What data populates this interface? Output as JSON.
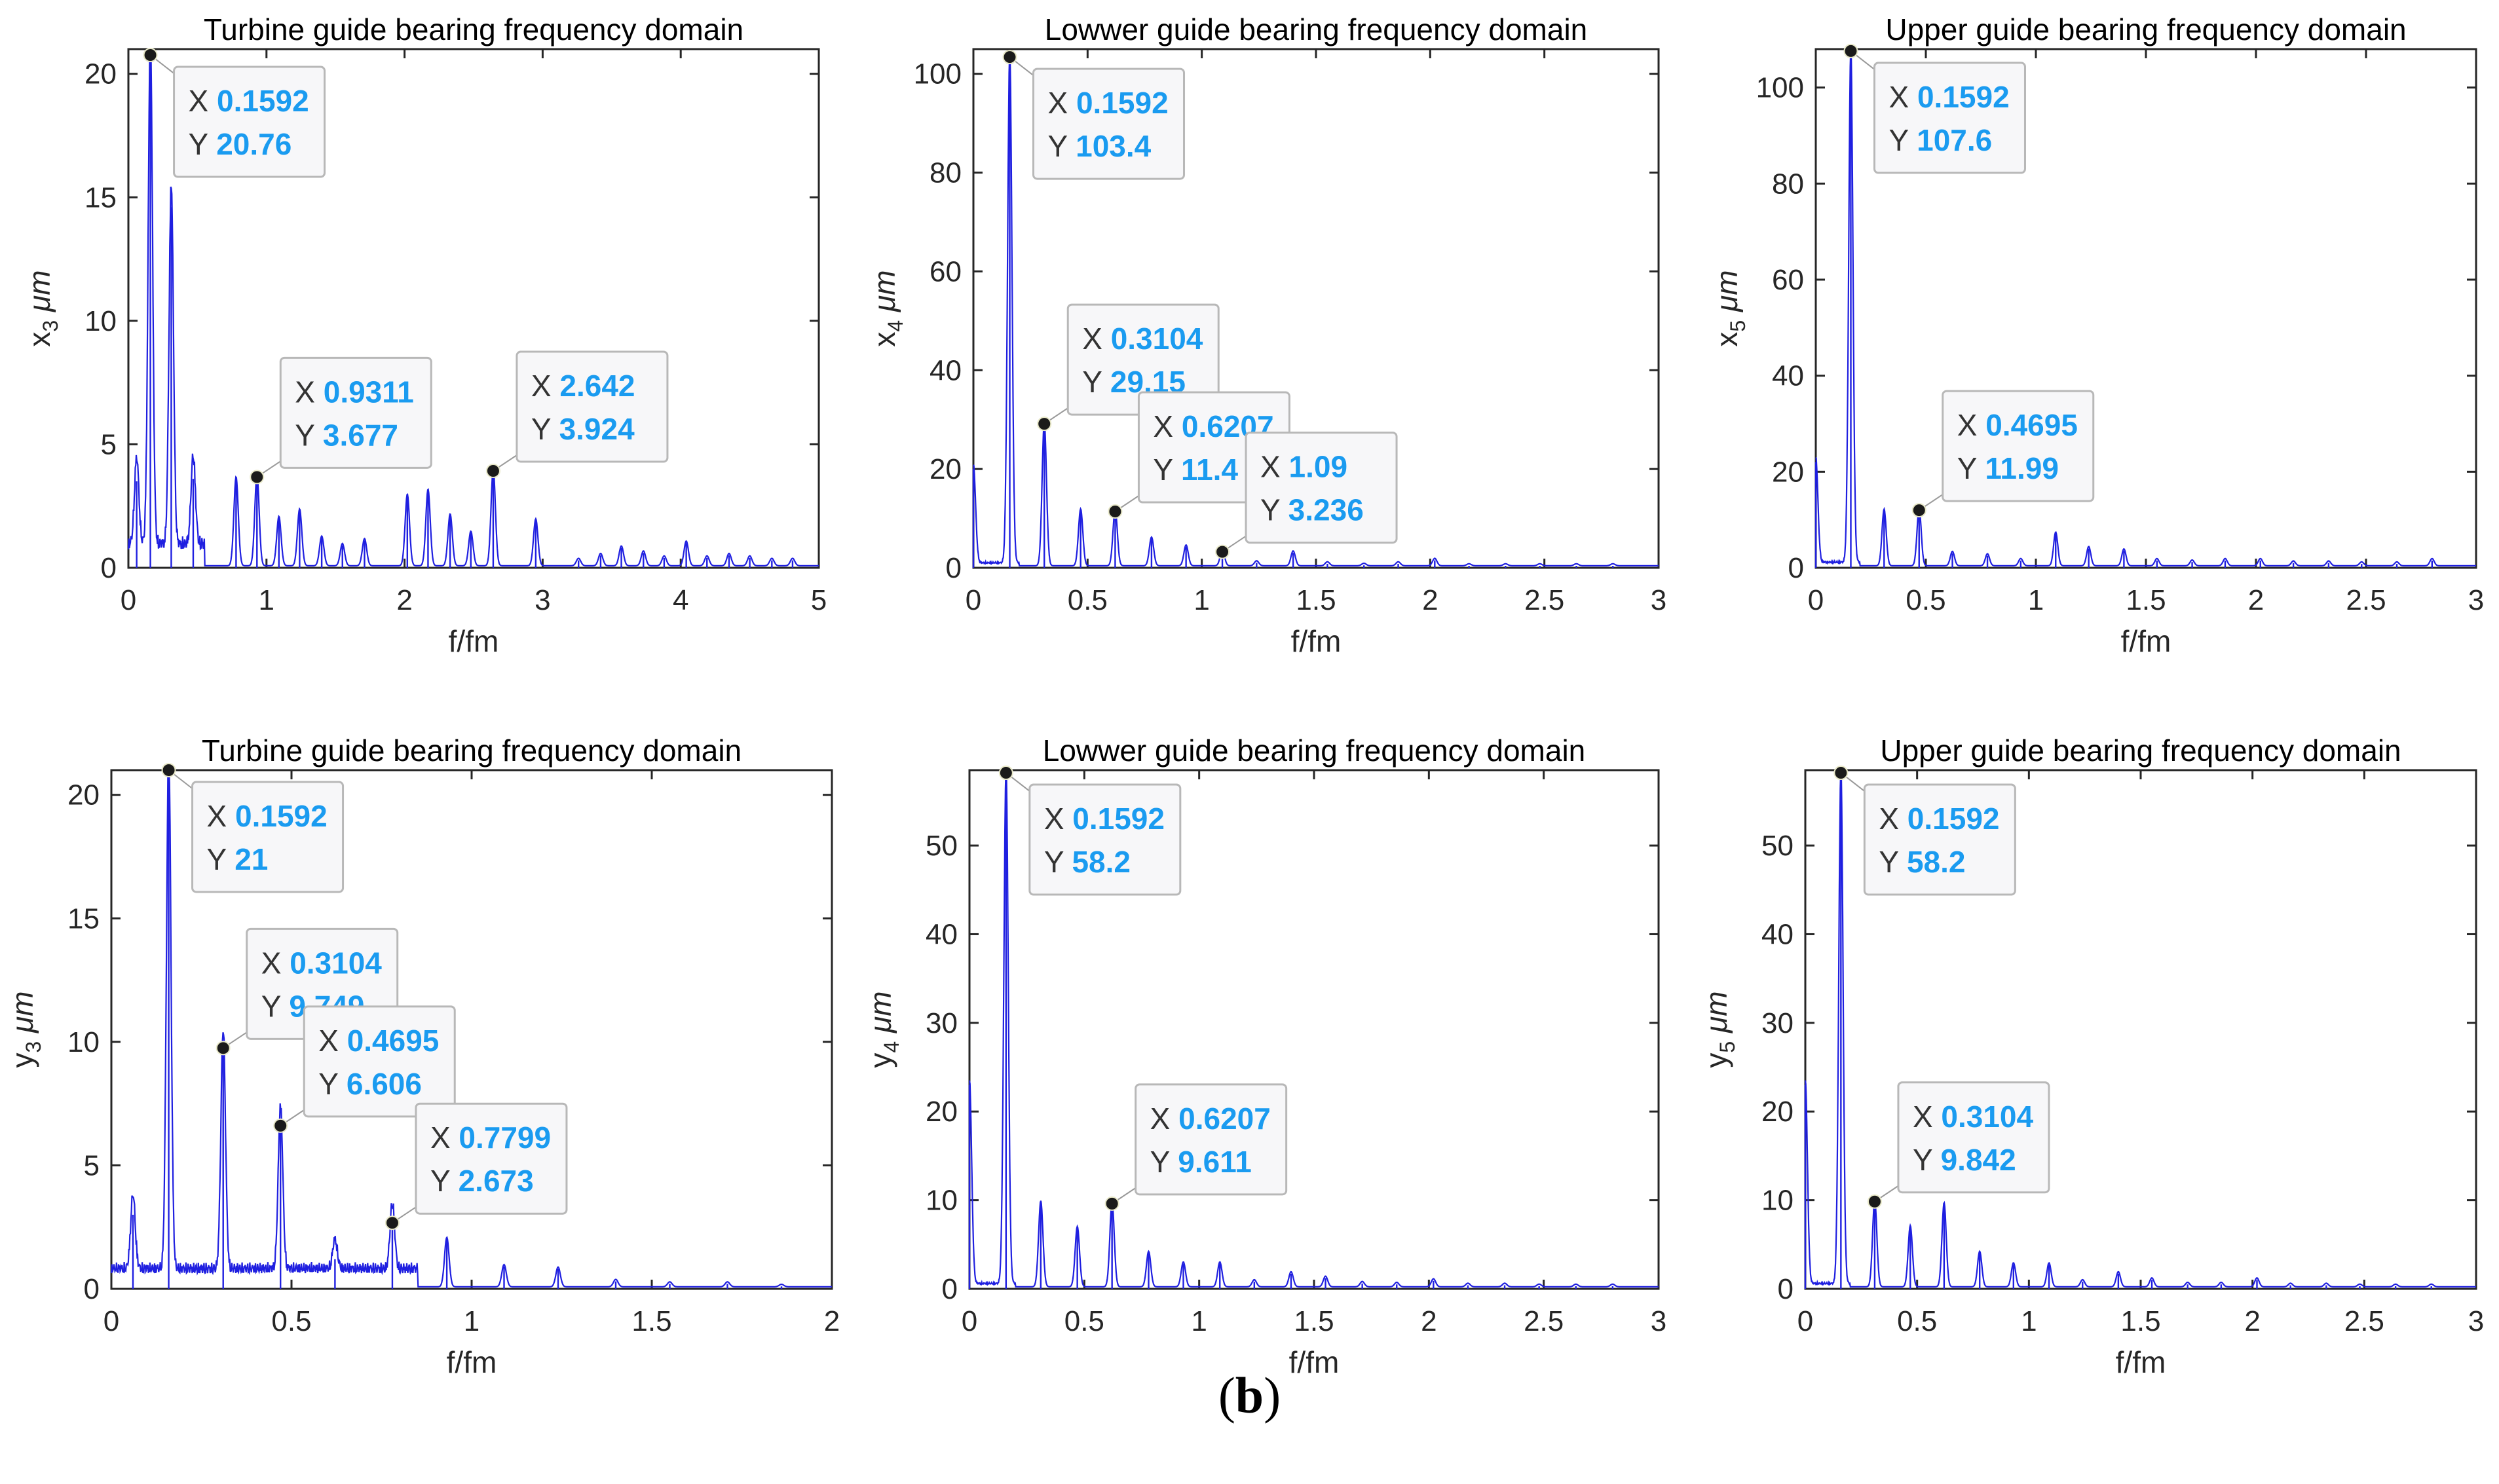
{
  "caption": {
    "open": "(",
    "letter": "b",
    "close": ")"
  },
  "chart_data": [
    {
      "type": "line",
      "title": "Turbine guide bearing frequency domain",
      "xlabel": "f/fm",
      "ylabel": {
        "base": "x",
        "sub": "3",
        "unit": "μm"
      },
      "xlim": [
        0,
        5
      ],
      "ylim": [
        0,
        21
      ],
      "xticks": [
        0,
        1,
        2,
        3,
        4,
        5
      ],
      "yticks": [
        0,
        5,
        10,
        15,
        20
      ],
      "series_color": "#1f1fe0",
      "peaks": [
        [
          0.06,
          3.5
        ],
        [
          0.1592,
          20.76
        ],
        [
          0.3104,
          14.6
        ],
        [
          0.4695,
          3.6
        ],
        [
          0.7799,
          3.6
        ],
        [
          0.9311,
          3.677
        ],
        [
          1.09,
          2.0
        ],
        [
          1.24,
          2.3
        ],
        [
          1.4,
          1.2
        ],
        [
          1.55,
          0.9
        ],
        [
          1.71,
          1.1
        ],
        [
          2.02,
          2.9
        ],
        [
          2.17,
          3.1
        ],
        [
          2.33,
          2.1
        ],
        [
          2.48,
          1.4
        ],
        [
          2.642,
          3.924
        ],
        [
          2.95,
          1.9
        ],
        [
          3.26,
          0.3
        ],
        [
          3.42,
          0.5
        ],
        [
          3.57,
          0.8
        ],
        [
          3.73,
          0.6
        ],
        [
          3.88,
          0.4
        ],
        [
          4.04,
          1.0
        ],
        [
          4.19,
          0.4
        ],
        [
          4.35,
          0.5
        ],
        [
          4.5,
          0.4
        ],
        [
          4.66,
          0.3
        ],
        [
          4.81,
          0.3
        ]
      ],
      "noise": {
        "start": 0.0,
        "end": 0.55,
        "base": 1.2
      },
      "annotations": [
        {
          "x": 0.1592,
          "y": 20.76,
          "X": "0.1592",
          "Y": "20.76",
          "pos": "right"
        },
        {
          "x": 0.9311,
          "y": 3.677,
          "X": "0.9311",
          "Y": "3.677",
          "pos": "upright"
        },
        {
          "x": 2.642,
          "y": 3.924,
          "X": "2.642",
          "Y": "3.924",
          "pos": "upright"
        }
      ]
    },
    {
      "type": "line",
      "title": "Lowwer guide bearing frequency domain",
      "xlabel": "f/fm",
      "ylabel": {
        "base": "x",
        "sub": "4",
        "unit": "μm"
      },
      "xlim": [
        0,
        3
      ],
      "ylim": [
        0,
        105
      ],
      "xticks": [
        0,
        0.5,
        1,
        1.5,
        2,
        2.5,
        3
      ],
      "yticks": [
        0,
        20,
        40,
        60,
        80,
        100
      ],
      "series_color": "#1f1fe0",
      "peaks": [
        [
          0.0,
          20
        ],
        [
          0.1592,
          103.4
        ],
        [
          0.3104,
          29.15
        ],
        [
          0.4695,
          11.5
        ],
        [
          0.6207,
          11.4
        ],
        [
          0.7799,
          5.8
        ],
        [
          0.9311,
          4.2
        ],
        [
          1.09,
          3.236
        ],
        [
          1.24,
          1.0
        ],
        [
          1.4,
          3.0
        ],
        [
          1.55,
          0.8
        ],
        [
          1.71,
          0.5
        ],
        [
          1.86,
          0.8
        ],
        [
          2.02,
          1.5
        ],
        [
          2.17,
          0.4
        ],
        [
          2.33,
          0.4
        ],
        [
          2.48,
          0.4
        ],
        [
          2.64,
          0.4
        ],
        [
          2.8,
          0.4
        ]
      ],
      "noise": {
        "start": 0.0,
        "end": 0.2,
        "base": 0.8
      },
      "annotations": [
        {
          "x": 0.1592,
          "y": 103.4,
          "X": "0.1592",
          "Y": "103.4",
          "pos": "right"
        },
        {
          "x": 0.3104,
          "y": 29.15,
          "X": "0.3104",
          "Y": "29.15",
          "pos": "upright"
        },
        {
          "x": 0.6207,
          "y": 11.4,
          "X": "0.6207",
          "Y": "11.4",
          "pos": "upright"
        },
        {
          "x": 1.09,
          "y": 3.236,
          "X": "1.09",
          "Y": "3.236",
          "pos": "upright"
        }
      ]
    },
    {
      "type": "line",
      "title": "Upper guide bearing frequency domain",
      "xlabel": "f/fm",
      "ylabel": {
        "base": "x",
        "sub": "5",
        "unit": "μm"
      },
      "xlim": [
        0,
        3
      ],
      "ylim": [
        0,
        108
      ],
      "xticks": [
        0,
        0.5,
        1,
        1.5,
        2,
        2.5,
        3
      ],
      "yticks": [
        0,
        20,
        40,
        60,
        80,
        100
      ],
      "series_color": "#1f1fe0",
      "peaks": [
        [
          0.0,
          22
        ],
        [
          0.1592,
          107.6
        ],
        [
          0.3104,
          11.8
        ],
        [
          0.4695,
          11.99
        ],
        [
          0.6207,
          3.0
        ],
        [
          0.7799,
          2.5
        ],
        [
          0.9311,
          1.5
        ],
        [
          1.09,
          7.0
        ],
        [
          1.24,
          4.0
        ],
        [
          1.4,
          3.5
        ],
        [
          1.55,
          1.5
        ],
        [
          1.71,
          1.2
        ],
        [
          1.86,
          1.5
        ],
        [
          2.02,
          1.5
        ],
        [
          2.17,
          1.0
        ],
        [
          2.33,
          1.0
        ],
        [
          2.48,
          0.8
        ],
        [
          2.64,
          0.8
        ],
        [
          2.8,
          1.5
        ]
      ],
      "noise": {
        "start": 0.0,
        "end": 0.2,
        "base": 1.0
      },
      "annotations": [
        {
          "x": 0.1592,
          "y": 107.6,
          "X": "0.1592",
          "Y": "107.6",
          "pos": "right"
        },
        {
          "x": 0.4695,
          "y": 11.99,
          "X": "0.4695",
          "Y": "11.99",
          "pos": "upright"
        }
      ]
    },
    {
      "type": "line",
      "title": "Turbine guide bearing frequency domain",
      "xlabel": "f/fm",
      "ylabel": {
        "base": "y",
        "sub": "3",
        "unit": "μm"
      },
      "xlim": [
        0,
        2
      ],
      "ylim": [
        0,
        21
      ],
      "xticks": [
        0,
        0.5,
        1,
        1.5,
        2
      ],
      "yticks": [
        0,
        5,
        10,
        15,
        20
      ],
      "series_color": "#1f1fe0",
      "peaks": [
        [
          0.06,
          3.0
        ],
        [
          0.1592,
          21
        ],
        [
          0.3104,
          9.749
        ],
        [
          0.4695,
          6.606
        ],
        [
          0.6207,
          1.2
        ],
        [
          0.7799,
          2.673
        ],
        [
          0.9311,
          2.0
        ],
        [
          1.09,
          0.9
        ],
        [
          1.24,
          0.8
        ],
        [
          1.4,
          0.3
        ],
        [
          1.55,
          0.2
        ],
        [
          1.71,
          0.2
        ],
        [
          1.86,
          0.1
        ]
      ],
      "noise": {
        "start": 0.0,
        "end": 0.85,
        "base": 1.0
      },
      "annotations": [
        {
          "x": 0.1592,
          "y": 21,
          "X": "0.1592",
          "Y": "21",
          "pos": "right"
        },
        {
          "x": 0.3104,
          "y": 9.749,
          "X": "0.3104",
          "Y": "9.749",
          "pos": "upright"
        },
        {
          "x": 0.4695,
          "y": 6.606,
          "X": "0.4695",
          "Y": "6.606",
          "pos": "upright"
        },
        {
          "x": 0.7799,
          "y": 2.673,
          "X": "0.7799",
          "Y": "2.673",
          "pos": "upright"
        }
      ]
    },
    {
      "type": "line",
      "title": "Lowwer guide bearing frequency domain",
      "xlabel": "f/fm",
      "ylabel": {
        "base": "y",
        "sub": "4",
        "unit": "μm"
      },
      "xlim": [
        0,
        3
      ],
      "ylim": [
        0,
        58.5
      ],
      "xticks": [
        0,
        0.5,
        1,
        1.5,
        2,
        2.5,
        3
      ],
      "yticks": [
        0,
        10,
        20,
        30,
        40,
        50
      ],
      "series_color": "#1f1fe0",
      "peaks": [
        [
          0.0,
          23
        ],
        [
          0.1592,
          58.2
        ],
        [
          0.3104,
          9.7
        ],
        [
          0.4695,
          6.8
        ],
        [
          0.6207,
          9.611
        ],
        [
          0.7799,
          4.0
        ],
        [
          0.9311,
          2.8
        ],
        [
          1.09,
          2.8
        ],
        [
          1.24,
          0.8
        ],
        [
          1.4,
          1.7
        ],
        [
          1.55,
          1.2
        ],
        [
          1.71,
          0.6
        ],
        [
          1.86,
          0.5
        ],
        [
          2.02,
          0.9
        ],
        [
          2.17,
          0.4
        ],
        [
          2.33,
          0.4
        ],
        [
          2.48,
          0.3
        ],
        [
          2.64,
          0.3
        ],
        [
          2.8,
          0.3
        ]
      ],
      "noise": {
        "start": 0.0,
        "end": 0.2,
        "base": 0.5
      },
      "annotations": [
        {
          "x": 0.1592,
          "y": 58.2,
          "X": "0.1592",
          "Y": "58.2",
          "pos": "right"
        },
        {
          "x": 0.6207,
          "y": 9.611,
          "X": "0.6207",
          "Y": "9.611",
          "pos": "upright"
        }
      ]
    },
    {
      "type": "line",
      "title": "Upper guide bearing frequency domain",
      "xlabel": "f/fm",
      "ylabel": {
        "base": "y",
        "sub": "5",
        "unit": "μm"
      },
      "xlim": [
        0,
        3
      ],
      "ylim": [
        0,
        58.5
      ],
      "xticks": [
        0,
        0.5,
        1,
        1.5,
        2,
        2.5,
        3
      ],
      "yticks": [
        0,
        10,
        20,
        30,
        40,
        50
      ],
      "series_color": "#1f1fe0",
      "peaks": [
        [
          0.0,
          23
        ],
        [
          0.1592,
          58.2
        ],
        [
          0.3104,
          9.842
        ],
        [
          0.4695,
          6.9
        ],
        [
          0.6207,
          9.5
        ],
        [
          0.7799,
          4.0
        ],
        [
          0.9311,
          2.7
        ],
        [
          1.09,
          2.7
        ],
        [
          1.24,
          0.8
        ],
        [
          1.4,
          1.7
        ],
        [
          1.55,
          1.0
        ],
        [
          1.71,
          0.5
        ],
        [
          1.86,
          0.5
        ],
        [
          2.02,
          1.0
        ],
        [
          2.17,
          0.4
        ],
        [
          2.33,
          0.4
        ],
        [
          2.48,
          0.3
        ],
        [
          2.64,
          0.3
        ],
        [
          2.8,
          0.3
        ]
      ],
      "noise": {
        "start": 0.0,
        "end": 0.2,
        "base": 0.5
      },
      "annotations": [
        {
          "x": 0.1592,
          "y": 58.2,
          "X": "0.1592",
          "Y": "58.2",
          "pos": "right"
        },
        {
          "x": 0.3104,
          "y": 9.842,
          "X": "0.3104",
          "Y": "9.842",
          "pos": "upright"
        }
      ]
    }
  ]
}
